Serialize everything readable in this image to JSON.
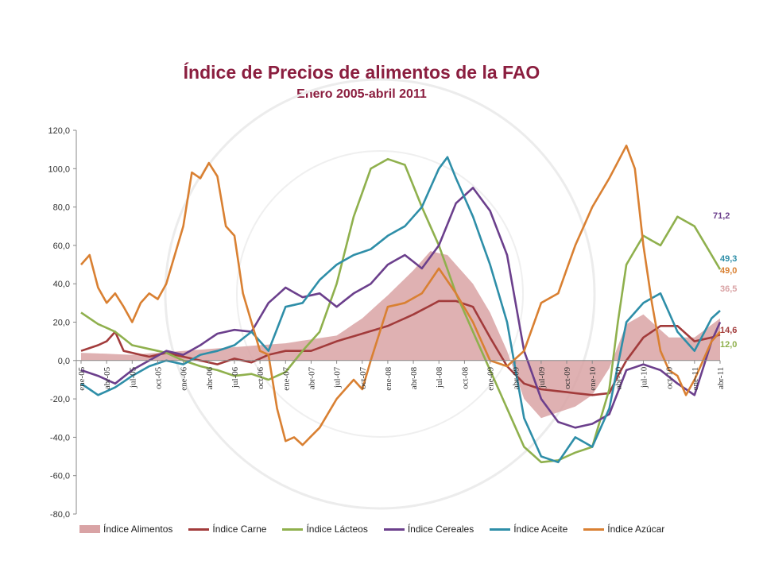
{
  "chart_data": {
    "type": "line",
    "title": "Índice de Precios de alimentos de la FAO",
    "subtitle": "Enero  2005-abril 2011",
    "ylim": [
      -80,
      120
    ],
    "yticks": [
      "120,0",
      "100,0",
      "80,0",
      "60,0",
      "40,0",
      "20,0",
      "0,0",
      "-20,0",
      "-40,0",
      "-60,0",
      "-80,0"
    ],
    "ytick_values": [
      120,
      100,
      80,
      60,
      40,
      20,
      0,
      -20,
      -40,
      -60,
      -80
    ],
    "x_tick_labels": [
      "ene-05",
      "abr-05",
      "jul-05",
      "oct-05",
      "ene-06",
      "abr-06",
      "jul-06",
      "oct-06",
      "ene-07",
      "abr-07",
      "jul-07",
      "oct-07",
      "ene-08",
      "abr-08",
      "jul-08",
      "oct-08",
      "ene-09",
      "abr-09",
      "jul-09",
      "oct-09",
      "ene-10",
      "abr-10",
      "jul-10",
      "oct-10",
      "ene-11",
      "abr-11"
    ],
    "n_points": 76,
    "grid": false,
    "legend_position": "bottom",
    "series": [
      {
        "name": "Índice Alimentos",
        "kind": "area",
        "color": "#d9a3a5",
        "anchors": [
          [
            0,
            4
          ],
          [
            6,
            3
          ],
          [
            12,
            5
          ],
          [
            18,
            7
          ],
          [
            24,
            9
          ],
          [
            27,
            11
          ],
          [
            30,
            13
          ],
          [
            33,
            22
          ],
          [
            36,
            34
          ],
          [
            39,
            47
          ],
          [
            41,
            57
          ],
          [
            43,
            55
          ],
          [
            46,
            40
          ],
          [
            48,
            25
          ],
          [
            50,
            5
          ],
          [
            52,
            -20
          ],
          [
            54,
            -30
          ],
          [
            56,
            -27
          ],
          [
            58,
            -24
          ],
          [
            60,
            -18
          ],
          [
            62,
            -4
          ],
          [
            64,
            19
          ],
          [
            66,
            24
          ],
          [
            69,
            12
          ],
          [
            72,
            12
          ],
          [
            75,
            22
          ],
          [
            78,
            33
          ],
          [
            81,
            37
          ]
        ],
        "end_label": "36,5"
      },
      {
        "name": "Índice Carne",
        "kind": "line",
        "color": "#a23b3b",
        "anchors": [
          [
            0,
            5
          ],
          [
            2,
            8
          ],
          [
            3,
            10
          ],
          [
            4,
            15
          ],
          [
            5,
            5
          ],
          [
            6,
            4
          ],
          [
            8,
            2
          ],
          [
            10,
            4
          ],
          [
            12,
            2
          ],
          [
            14,
            0
          ],
          [
            16,
            -2
          ],
          [
            18,
            1
          ],
          [
            20,
            -1
          ],
          [
            22,
            3
          ],
          [
            24,
            5
          ],
          [
            27,
            5
          ],
          [
            30,
            10
          ],
          [
            33,
            14
          ],
          [
            36,
            18
          ],
          [
            39,
            24
          ],
          [
            42,
            31
          ],
          [
            44,
            31
          ],
          [
            46,
            28
          ],
          [
            48,
            12
          ],
          [
            50,
            -3
          ],
          [
            52,
            -12
          ],
          [
            54,
            -15
          ],
          [
            56,
            -16
          ],
          [
            58,
            -17
          ],
          [
            60,
            -18
          ],
          [
            62,
            -17
          ],
          [
            63,
            -8
          ],
          [
            64,
            0
          ],
          [
            66,
            12
          ],
          [
            68,
            18
          ],
          [
            70,
            18
          ],
          [
            72,
            10
          ],
          [
            74,
            12
          ],
          [
            76,
            15
          ],
          [
            78,
            20
          ],
          [
            80,
            19
          ],
          [
            81,
            14.6
          ]
        ],
        "end_label": "14,6"
      },
      {
        "name": "Índice Lácteos",
        "kind": "line",
        "color": "#8fb04d",
        "anchors": [
          [
            0,
            25
          ],
          [
            2,
            19
          ],
          [
            4,
            15
          ],
          [
            6,
            8
          ],
          [
            8,
            6
          ],
          [
            10,
            4
          ],
          [
            12,
            0
          ],
          [
            14,
            -3
          ],
          [
            16,
            -5
          ],
          [
            18,
            -8
          ],
          [
            20,
            -7
          ],
          [
            22,
            -10
          ],
          [
            24,
            -6
          ],
          [
            26,
            5
          ],
          [
            28,
            15
          ],
          [
            30,
            40
          ],
          [
            32,
            75
          ],
          [
            34,
            100
          ],
          [
            36,
            105
          ],
          [
            38,
            102
          ],
          [
            40,
            80
          ],
          [
            42,
            60
          ],
          [
            44,
            35
          ],
          [
            46,
            15
          ],
          [
            48,
            -5
          ],
          [
            50,
            -25
          ],
          [
            52,
            -45
          ],
          [
            54,
            -53
          ],
          [
            56,
            -52
          ],
          [
            58,
            -48
          ],
          [
            60,
            -45
          ],
          [
            62,
            -15
          ],
          [
            63,
            20
          ],
          [
            64,
            50
          ],
          [
            66,
            65
          ],
          [
            68,
            60
          ],
          [
            70,
            75
          ],
          [
            72,
            70
          ],
          [
            74,
            55
          ],
          [
            76,
            40
          ],
          [
            77,
            10
          ],
          [
            78,
            -1
          ],
          [
            79,
            -3
          ],
          [
            80,
            25
          ],
          [
            81,
            12
          ]
        ],
        "end_label": "12,0"
      },
      {
        "name": "Índice Cereales",
        "kind": "line",
        "color": "#6b3f8c",
        "anchors": [
          [
            0,
            -5
          ],
          [
            2,
            -8
          ],
          [
            4,
            -12
          ],
          [
            6,
            -5
          ],
          [
            8,
            0
          ],
          [
            10,
            5
          ],
          [
            12,
            3
          ],
          [
            14,
            8
          ],
          [
            16,
            14
          ],
          [
            18,
            16
          ],
          [
            20,
            15
          ],
          [
            22,
            30
          ],
          [
            24,
            38
          ],
          [
            26,
            33
          ],
          [
            28,
            35
          ],
          [
            30,
            28
          ],
          [
            32,
            35
          ],
          [
            34,
            40
          ],
          [
            36,
            50
          ],
          [
            38,
            55
          ],
          [
            40,
            48
          ],
          [
            42,
            60
          ],
          [
            44,
            82
          ],
          [
            46,
            90
          ],
          [
            48,
            78
          ],
          [
            50,
            55
          ],
          [
            52,
            5
          ],
          [
            54,
            -20
          ],
          [
            56,
            -32
          ],
          [
            58,
            -35
          ],
          [
            60,
            -33
          ],
          [
            62,
            -28
          ],
          [
            64,
            -5
          ],
          [
            66,
            -2
          ],
          [
            68,
            -5
          ],
          [
            70,
            -12
          ],
          [
            72,
            -18
          ],
          [
            74,
            10
          ],
          [
            76,
            30
          ],
          [
            78,
            32
          ],
          [
            80,
            48
          ],
          [
            82,
            57
          ],
          [
            83,
            71.2
          ]
        ],
        "end_label": "71,2"
      },
      {
        "name": "Índice Aceite",
        "kind": "line",
        "color": "#2e8ea8",
        "anchors": [
          [
            0,
            -12
          ],
          [
            2,
            -18
          ],
          [
            4,
            -14
          ],
          [
            6,
            -8
          ],
          [
            8,
            -3
          ],
          [
            10,
            0
          ],
          [
            12,
            -2
          ],
          [
            14,
            3
          ],
          [
            16,
            5
          ],
          [
            18,
            8
          ],
          [
            20,
            15
          ],
          [
            22,
            5
          ],
          [
            24,
            28
          ],
          [
            26,
            30
          ],
          [
            28,
            42
          ],
          [
            30,
            50
          ],
          [
            32,
            55
          ],
          [
            34,
            58
          ],
          [
            36,
            65
          ],
          [
            38,
            70
          ],
          [
            40,
            80
          ],
          [
            42,
            100
          ],
          [
            43,
            106
          ],
          [
            44,
            95
          ],
          [
            46,
            75
          ],
          [
            48,
            50
          ],
          [
            50,
            20
          ],
          [
            52,
            -30
          ],
          [
            54,
            -50
          ],
          [
            56,
            -53
          ],
          [
            58,
            -40
          ],
          [
            60,
            -45
          ],
          [
            62,
            -25
          ],
          [
            64,
            20
          ],
          [
            66,
            30
          ],
          [
            68,
            35
          ],
          [
            70,
            15
          ],
          [
            72,
            5
          ],
          [
            74,
            22
          ],
          [
            76,
            30
          ],
          [
            78,
            45
          ],
          [
            80,
            55
          ],
          [
            82,
            65
          ],
          [
            83,
            62
          ],
          [
            84,
            49.3
          ]
        ],
        "end_label": "49,3"
      },
      {
        "name": "Índice Azúcar",
        "kind": "line",
        "color": "#d98032",
        "anchors": [
          [
            0,
            50
          ],
          [
            1,
            55
          ],
          [
            2,
            38
          ],
          [
            3,
            30
          ],
          [
            4,
            35
          ],
          [
            5,
            28
          ],
          [
            6,
            20
          ],
          [
            7,
            30
          ],
          [
            8,
            35
          ],
          [
            9,
            32
          ],
          [
            10,
            40
          ],
          [
            12,
            70
          ],
          [
            13,
            98
          ],
          [
            14,
            95
          ],
          [
            15,
            103
          ],
          [
            16,
            96
          ],
          [
            17,
            70
          ],
          [
            18,
            65
          ],
          [
            19,
            35
          ],
          [
            20,
            20
          ],
          [
            21,
            5
          ],
          [
            22,
            3
          ],
          [
            23,
            -25
          ],
          [
            24,
            -42
          ],
          [
            25,
            -40
          ],
          [
            26,
            -44
          ],
          [
            28,
            -35
          ],
          [
            30,
            -20
          ],
          [
            32,
            -10
          ],
          [
            33,
            -15
          ],
          [
            34,
            0
          ],
          [
            36,
            28
          ],
          [
            38,
            30
          ],
          [
            40,
            35
          ],
          [
            42,
            48
          ],
          [
            44,
            35
          ],
          [
            46,
            20
          ],
          [
            48,
            0
          ],
          [
            50,
            -3
          ],
          [
            52,
            5
          ],
          [
            54,
            30
          ],
          [
            56,
            35
          ],
          [
            58,
            60
          ],
          [
            60,
            80
          ],
          [
            62,
            95
          ],
          [
            64,
            112
          ],
          [
            65,
            100
          ],
          [
            66,
            60
          ],
          [
            67,
            30
          ],
          [
            68,
            5
          ],
          [
            69,
            -5
          ],
          [
            70,
            -8
          ],
          [
            71,
            -18
          ],
          [
            72,
            -10
          ],
          [
            74,
            10
          ],
          [
            76,
            20
          ],
          [
            78,
            15
          ],
          [
            80,
            40
          ],
          [
            82,
            49
          ]
        ],
        "end_label": "49,0"
      }
    ]
  }
}
